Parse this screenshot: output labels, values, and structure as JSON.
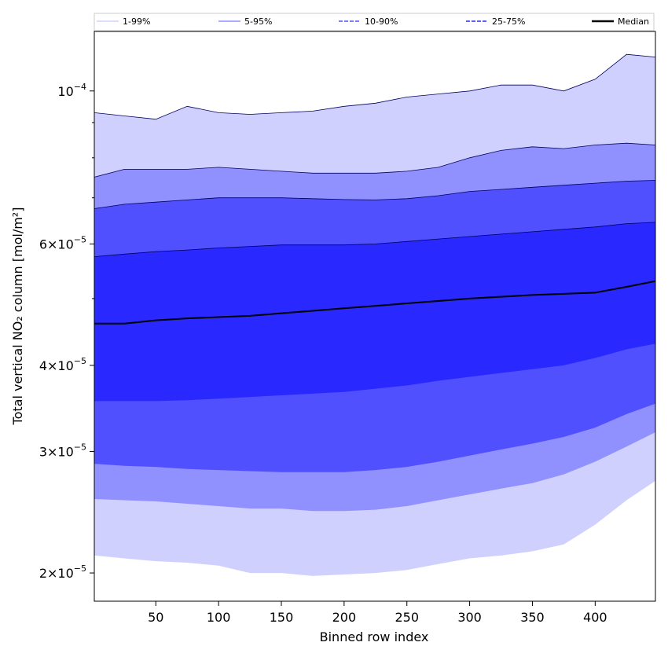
{
  "chart_data": {
    "type": "area",
    "xlabel": "Binned row index",
    "ylabel": "Total vertical NO₂ column [mol/m²]",
    "xlim": [
      1,
      448
    ],
    "ylim": [
      1.82e-05,
      0.000122
    ],
    "y_scale": "log",
    "x_ticks": [
      50,
      100,
      150,
      200,
      250,
      300,
      350,
      400
    ],
    "y_ticks": [
      {
        "value": 2e-05,
        "mant": "2",
        "exp": "−5"
      },
      {
        "value": 3e-05,
        "mant": "3",
        "exp": "−5"
      },
      {
        "value": 4e-05,
        "mant": "4",
        "exp": "−5"
      },
      {
        "value": 6e-05,
        "mant": "6",
        "exp": "−5"
      },
      {
        "value": 0.0001,
        "mant": "10",
        "exp": "−4"
      }
    ],
    "legend_position": "top",
    "legend": [
      {
        "label": "1-99%",
        "color": "#d0d0ff",
        "style": "solid"
      },
      {
        "label": "5-95%",
        "color": "#9090ff",
        "style": "solid"
      },
      {
        "label": "10-90%",
        "color": "#5050ff",
        "style": "dashed"
      },
      {
        "label": "25-75%",
        "color": "#2828ff",
        "style": "dashed"
      },
      {
        "label": "Median",
        "color": "#000000",
        "style": "solid"
      }
    ],
    "x": [
      1,
      25,
      50,
      75,
      100,
      125,
      150,
      175,
      200,
      225,
      250,
      275,
      300,
      325,
      350,
      375,
      400,
      425,
      448
    ],
    "bands": [
      {
        "name": "1-99%",
        "color": "#d0d0ff",
        "upper": [
          9.3e-05,
          9.2e-05,
          9.1e-05,
          9.5e-05,
          9.3e-05,
          9.25e-05,
          9.3e-05,
          9.35e-05,
          9.5e-05,
          9.6e-05,
          9.8e-05,
          9.9e-05,
          0.0001,
          0.000102,
          0.000102,
          0.0001,
          0.000104,
          0.000113,
          0.000112
        ],
        "lower": [
          2.12e-05,
          2.1e-05,
          2.08e-05,
          2.07e-05,
          2.05e-05,
          2e-05,
          2e-05,
          1.98e-05,
          1.99e-05,
          2e-05,
          2.02e-05,
          2.06e-05,
          2.1e-05,
          2.12e-05,
          2.15e-05,
          2.2e-05,
          2.35e-05,
          2.55e-05,
          2.72e-05
        ]
      },
      {
        "name": "5-95%",
        "color": "#9090ff",
        "upper": [
          7.5e-05,
          7.7e-05,
          7.7e-05,
          7.7e-05,
          7.75e-05,
          7.7e-05,
          7.65e-05,
          7.6e-05,
          7.6e-05,
          7.6e-05,
          7.65e-05,
          7.75e-05,
          8e-05,
          8.2e-05,
          8.3e-05,
          8.25e-05,
          8.35e-05,
          8.4e-05,
          8.35e-05
        ],
        "lower": [
          2.56e-05,
          2.55e-05,
          2.54e-05,
          2.52e-05,
          2.5e-05,
          2.48e-05,
          2.48e-05,
          2.46e-05,
          2.46e-05,
          2.47e-05,
          2.5e-05,
          2.55e-05,
          2.6e-05,
          2.65e-05,
          2.7e-05,
          2.78e-05,
          2.9e-05,
          3.05e-05,
          3.2e-05
        ]
      },
      {
        "name": "10-90%",
        "color": "#5050ff",
        "upper": [
          6.75e-05,
          6.85e-05,
          6.9e-05,
          6.95e-05,
          7e-05,
          7e-05,
          7e-05,
          6.98e-05,
          6.96e-05,
          6.95e-05,
          6.98e-05,
          7.05e-05,
          7.15e-05,
          7.2e-05,
          7.25e-05,
          7.3e-05,
          7.35e-05,
          7.4e-05,
          7.42e-05
        ],
        "lower": [
          2.88e-05,
          2.86e-05,
          2.85e-05,
          2.83e-05,
          2.82e-05,
          2.81e-05,
          2.8e-05,
          2.8e-05,
          2.8e-05,
          2.82e-05,
          2.85e-05,
          2.9e-05,
          2.96e-05,
          3.02e-05,
          3.08e-05,
          3.15e-05,
          3.25e-05,
          3.4e-05,
          3.52e-05
        ]
      },
      {
        "name": "25-75%",
        "color": "#2828ff",
        "upper": [
          5.75e-05,
          5.8e-05,
          5.85e-05,
          5.88e-05,
          5.92e-05,
          5.95e-05,
          5.98e-05,
          5.98e-05,
          5.98e-05,
          6e-05,
          6.05e-05,
          6.1e-05,
          6.15e-05,
          6.2e-05,
          6.25e-05,
          6.3e-05,
          6.35e-05,
          6.42e-05,
          6.45e-05
        ],
        "lower": [
          3.55e-05,
          3.55e-05,
          3.55e-05,
          3.56e-05,
          3.58e-05,
          3.6e-05,
          3.62e-05,
          3.64e-05,
          3.66e-05,
          3.7e-05,
          3.74e-05,
          3.8e-05,
          3.85e-05,
          3.9e-05,
          3.95e-05,
          4e-05,
          4.1e-05,
          4.22e-05,
          4.3e-05
        ]
      }
    ],
    "median": [
      4.6e-05,
      4.6e-05,
      4.65e-05,
      4.68e-05,
      4.7e-05,
      4.72e-05,
      4.76e-05,
      4.8e-05,
      4.84e-05,
      4.88e-05,
      4.92e-05,
      4.96e-05,
      5e-05,
      5.03e-05,
      5.06e-05,
      5.08e-05,
      5.1e-05,
      5.2e-05,
      5.3e-05
    ]
  }
}
